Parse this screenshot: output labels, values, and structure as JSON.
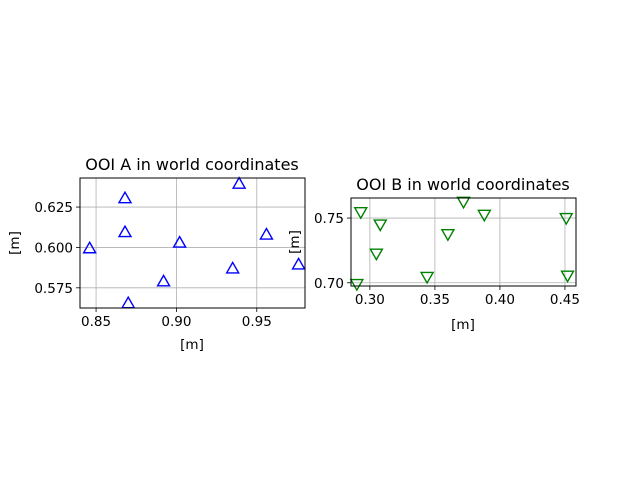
{
  "chart_data": [
    {
      "type": "scatter",
      "title": "OOI A in world coordinates",
      "xlabel": "[m]",
      "ylabel": "[m]",
      "xlim": [
        0.84,
        0.98
      ],
      "ylim": [
        0.5625,
        0.643
      ],
      "xticks": [
        "0.85",
        "0.90",
        "0.95"
      ],
      "xtick_values": [
        0.85,
        0.9,
        0.95
      ],
      "yticks": [
        "0.575",
        "0.600",
        "0.625"
      ],
      "ytick_values": [
        0.575,
        0.6,
        0.625
      ],
      "grid": true,
      "marker": "triangle-up",
      "color": "#0000ff",
      "series": [
        {
          "x": [
            0.846,
            0.868,
            0.868,
            0.87,
            0.892,
            0.902,
            0.935,
            0.939,
            0.956,
            0.976
          ],
          "y": [
            0.5995,
            0.6305,
            0.6095,
            0.5655,
            0.579,
            0.603,
            0.587,
            0.6395,
            0.608,
            0.5895
          ]
        }
      ]
    },
    {
      "type": "scatter",
      "title": "OOI B in world coordinates",
      "xlabel": "[m]",
      "ylabel": "[m]",
      "xlim": [
        0.2855,
        0.4585
      ],
      "ylim": [
        0.6975,
        0.7655
      ],
      "xticks": [
        "0.30",
        "0.35",
        "0.40",
        "0.45"
      ],
      "xtick_values": [
        0.3,
        0.35,
        0.4,
        0.45
      ],
      "yticks": [
        "0.70",
        "0.75"
      ],
      "ytick_values": [
        0.7,
        0.75
      ],
      "grid": true,
      "marker": "triangle-down",
      "color": "#008000",
      "series": [
        {
          "x": [
            0.29,
            0.293,
            0.305,
            0.308,
            0.344,
            0.36,
            0.372,
            0.388,
            0.451,
            0.452
          ],
          "y": [
            0.699,
            0.7545,
            0.7225,
            0.745,
            0.7045,
            0.7375,
            0.7625,
            0.7525,
            0.75,
            0.7055
          ]
        }
      ]
    }
  ]
}
